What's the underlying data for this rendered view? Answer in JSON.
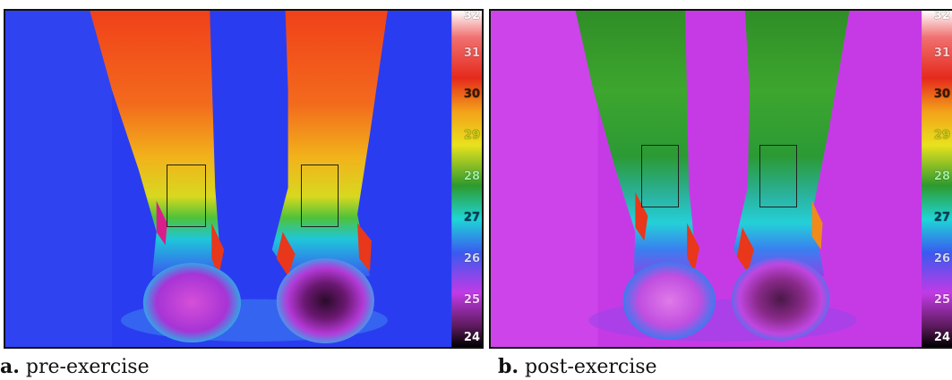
{
  "panels": [
    {
      "id": "a",
      "caption_letter": "a.",
      "caption_text": " pre-exercise",
      "scale_ticks": [
        "32",
        "31",
        "30",
        "29",
        "28",
        "27",
        "26",
        "25",
        "24"
      ]
    },
    {
      "id": "b",
      "caption_letter": "b.",
      "caption_text": " post-exercise",
      "scale_ticks": [
        "32",
        "31",
        "30",
        "29",
        "28",
        "27",
        "26",
        "25",
        "24"
      ]
    }
  ],
  "colors": {
    "background_pre": "#2a3cf0",
    "background_post": "#c63ae6",
    "leg_warm_pre": "#f0541e",
    "leg_warm_post": "#2f9a2a",
    "heel": "#b83ad8"
  }
}
